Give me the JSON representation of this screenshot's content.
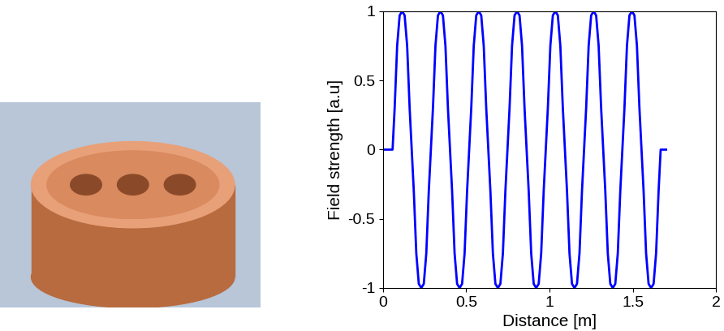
{
  "chart_data": {
    "type": "line",
    "x_label": "Distance [m]",
    "y_label": "Field strength [a.u]",
    "x": [
      0,
      0.04,
      0.0575,
      0.07,
      0.085,
      0.1,
      0.115,
      0.13,
      0.145,
      0.16,
      0.1725,
      0.185,
      0.2,
      0.215,
      0.23,
      0.245,
      0.26,
      0.275,
      0.2875,
      0.3,
      0.315,
      0.33,
      0.345,
      0.36,
      0.375,
      0.39,
      0.4025,
      0.415,
      0.43,
      0.445,
      0.46,
      0.475,
      0.49,
      0.505,
      0.5175,
      0.53,
      0.545,
      0.56,
      0.575,
      0.59,
      0.605,
      0.62,
      0.6325,
      0.645,
      0.66,
      0.675,
      0.69,
      0.705,
      0.72,
      0.735,
      0.7475,
      0.76,
      0.775,
      0.79,
      0.805,
      0.82,
      0.835,
      0.85,
      0.8625,
      0.875,
      0.89,
      0.905,
      0.92,
      0.935,
      0.95,
      0.965,
      0.9775,
      0.99,
      1.005,
      1.02,
      1.035,
      1.05,
      1.065,
      1.08,
      1.0925,
      1.105,
      1.12,
      1.135,
      1.15,
      1.165,
      1.18,
      1.195,
      1.2075,
      1.22,
      1.235,
      1.25,
      1.265,
      1.28,
      1.295,
      1.31,
      1.3225,
      1.335,
      1.35,
      1.365,
      1.38,
      1.395,
      1.41,
      1.425,
      1.4375,
      1.45,
      1.465,
      1.48,
      1.495,
      1.51,
      1.525,
      1.54,
      1.5525,
      1.565,
      1.58,
      1.595,
      1.61,
      1.625,
      1.64,
      1.655,
      1.6675,
      1.7
    ],
    "values": [
      0,
      0,
      0,
      0.3,
      0.75,
      0.97,
      1,
      0.97,
      0.75,
      0.3,
      0,
      -0.3,
      -0.75,
      -0.97,
      -1,
      -0.97,
      -0.75,
      -0.3,
      0,
      0.3,
      0.75,
      0.97,
      1,
      0.97,
      0.75,
      0.3,
      0,
      -0.3,
      -0.75,
      -0.97,
      -1,
      -0.97,
      -0.75,
      -0.3,
      0,
      0.3,
      0.75,
      0.97,
      1,
      0.97,
      0.75,
      0.3,
      0,
      -0.3,
      -0.75,
      -0.97,
      -1,
      -0.97,
      -0.75,
      -0.3,
      0,
      0.3,
      0.75,
      0.97,
      1,
      0.97,
      0.75,
      0.3,
      0,
      -0.3,
      -0.75,
      -0.97,
      -1,
      -0.97,
      -0.75,
      -0.3,
      0,
      0.3,
      0.75,
      0.97,
      1,
      0.97,
      0.75,
      0.3,
      0,
      -0.3,
      -0.75,
      -0.97,
      -1,
      -0.97,
      -0.75,
      -0.3,
      0,
      0.3,
      0.75,
      0.97,
      1,
      0.97,
      0.75,
      0.3,
      0,
      -0.3,
      -0.75,
      -0.97,
      -1,
      -0.97,
      -0.75,
      -0.3,
      0,
      0.3,
      0.75,
      0.97,
      1,
      0.97,
      0.75,
      0.3,
      0,
      -0.3,
      -0.75,
      -0.97,
      -1,
      -0.97,
      -0.75,
      -0.3,
      0,
      0
    ],
    "color": "#0000ff",
    "xlim": [
      0,
      2
    ],
    "xticks": [
      0,
      0.5,
      1,
      1.5,
      2
    ],
    "ylim": [
      -1,
      1
    ],
    "yticks": [
      -1,
      -0.5,
      0,
      0.5,
      1
    ],
    "grid": false
  }
}
